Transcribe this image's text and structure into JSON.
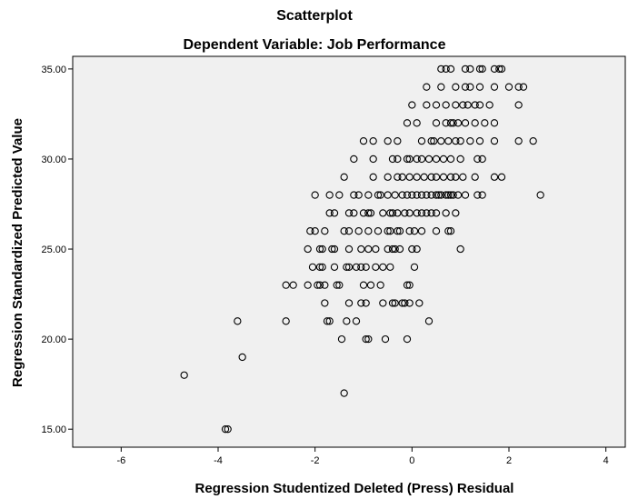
{
  "chart_data": {
    "type": "scatter",
    "title": "Scatterplot",
    "subtitle": "Dependent Variable: Job Performance",
    "xlabel": "Regression Studentized Deleted (Press) Residual",
    "ylabel": "Regression Standardized Predicted Value",
    "xlim": [
      -7,
      4.4
    ],
    "ylim": [
      14,
      35.7
    ],
    "xticks": [
      -6,
      -4,
      -2,
      0,
      2,
      4
    ],
    "xtick_labels": [
      "-6",
      "-4",
      "-2",
      "0",
      "2",
      "4"
    ],
    "yticks": [
      15,
      20,
      25,
      30,
      35
    ],
    "ytick_labels": [
      "15.00",
      "20.00",
      "25.00",
      "30.00",
      "35.00"
    ],
    "grid": false,
    "background": "#f0f0f0",
    "points": [
      {
        "x": 0.6,
        "y": 35
      },
      {
        "x": 0.7,
        "y": 35
      },
      {
        "x": 0.8,
        "y": 35
      },
      {
        "x": 1.1,
        "y": 35
      },
      {
        "x": 1.2,
        "y": 35
      },
      {
        "x": 1.4,
        "y": 35
      },
      {
        "x": 1.45,
        "y": 35
      },
      {
        "x": 1.7,
        "y": 35
      },
      {
        "x": 1.8,
        "y": 35
      },
      {
        "x": 1.85,
        "y": 35
      },
      {
        "x": 0.3,
        "y": 34
      },
      {
        "x": 0.6,
        "y": 34
      },
      {
        "x": 0.9,
        "y": 34
      },
      {
        "x": 1.1,
        "y": 34
      },
      {
        "x": 1.2,
        "y": 34
      },
      {
        "x": 1.4,
        "y": 34
      },
      {
        "x": 1.7,
        "y": 34
      },
      {
        "x": 2.0,
        "y": 34
      },
      {
        "x": 2.2,
        "y": 34
      },
      {
        "x": 2.3,
        "y": 34
      },
      {
        "x": 0.0,
        "y": 33
      },
      {
        "x": 0.3,
        "y": 33
      },
      {
        "x": 0.5,
        "y": 33
      },
      {
        "x": 0.7,
        "y": 33
      },
      {
        "x": 0.9,
        "y": 33
      },
      {
        "x": 1.05,
        "y": 33
      },
      {
        "x": 1.15,
        "y": 33
      },
      {
        "x": 1.3,
        "y": 33
      },
      {
        "x": 1.4,
        "y": 33
      },
      {
        "x": 1.6,
        "y": 33
      },
      {
        "x": 2.2,
        "y": 33
      },
      {
        "x": -0.1,
        "y": 32
      },
      {
        "x": 0.1,
        "y": 32
      },
      {
        "x": 0.5,
        "y": 32
      },
      {
        "x": 0.7,
        "y": 32
      },
      {
        "x": 0.8,
        "y": 32
      },
      {
        "x": 0.85,
        "y": 32
      },
      {
        "x": 0.95,
        "y": 32
      },
      {
        "x": 1.1,
        "y": 32
      },
      {
        "x": 1.3,
        "y": 32
      },
      {
        "x": 1.5,
        "y": 32
      },
      {
        "x": 1.7,
        "y": 32
      },
      {
        "x": -1.0,
        "y": 31
      },
      {
        "x": -0.8,
        "y": 31
      },
      {
        "x": -0.5,
        "y": 31
      },
      {
        "x": -0.3,
        "y": 31
      },
      {
        "x": 0.2,
        "y": 31
      },
      {
        "x": 0.4,
        "y": 31
      },
      {
        "x": 0.45,
        "y": 31
      },
      {
        "x": 0.6,
        "y": 31
      },
      {
        "x": 0.75,
        "y": 31
      },
      {
        "x": 0.9,
        "y": 31
      },
      {
        "x": 1.0,
        "y": 31
      },
      {
        "x": 1.2,
        "y": 31
      },
      {
        "x": 1.4,
        "y": 31
      },
      {
        "x": 1.7,
        "y": 31
      },
      {
        "x": 2.2,
        "y": 31
      },
      {
        "x": 2.5,
        "y": 31
      },
      {
        "x": -1.2,
        "y": 30
      },
      {
        "x": -0.8,
        "y": 30
      },
      {
        "x": -0.4,
        "y": 30
      },
      {
        "x": -0.3,
        "y": 30
      },
      {
        "x": -0.1,
        "y": 30
      },
      {
        "x": -0.05,
        "y": 30
      },
      {
        "x": 0.1,
        "y": 30
      },
      {
        "x": 0.2,
        "y": 30
      },
      {
        "x": 0.35,
        "y": 30
      },
      {
        "x": 0.5,
        "y": 30
      },
      {
        "x": 0.65,
        "y": 30
      },
      {
        "x": 0.8,
        "y": 30
      },
      {
        "x": 1.0,
        "y": 30
      },
      {
        "x": 1.35,
        "y": 30
      },
      {
        "x": 1.45,
        "y": 30
      },
      {
        "x": -1.4,
        "y": 29
      },
      {
        "x": -0.8,
        "y": 29
      },
      {
        "x": -0.5,
        "y": 29
      },
      {
        "x": -0.3,
        "y": 29
      },
      {
        "x": -0.2,
        "y": 29
      },
      {
        "x": -0.05,
        "y": 29
      },
      {
        "x": 0.1,
        "y": 29
      },
      {
        "x": 0.25,
        "y": 29
      },
      {
        "x": 0.4,
        "y": 29
      },
      {
        "x": 0.5,
        "y": 29
      },
      {
        "x": 0.65,
        "y": 29
      },
      {
        "x": 0.8,
        "y": 29
      },
      {
        "x": 0.9,
        "y": 29
      },
      {
        "x": 1.05,
        "y": 29
      },
      {
        "x": 1.3,
        "y": 29
      },
      {
        "x": 1.7,
        "y": 29
      },
      {
        "x": 1.85,
        "y": 29
      },
      {
        "x": -2.0,
        "y": 28
      },
      {
        "x": -1.7,
        "y": 28
      },
      {
        "x": -1.5,
        "y": 28
      },
      {
        "x": -1.2,
        "y": 28
      },
      {
        "x": -1.1,
        "y": 28
      },
      {
        "x": -0.9,
        "y": 28
      },
      {
        "x": -0.7,
        "y": 28
      },
      {
        "x": -0.65,
        "y": 28
      },
      {
        "x": -0.5,
        "y": 28
      },
      {
        "x": -0.35,
        "y": 28
      },
      {
        "x": -0.2,
        "y": 28
      },
      {
        "x": -0.1,
        "y": 28
      },
      {
        "x": 0.0,
        "y": 28
      },
      {
        "x": 0.1,
        "y": 28
      },
      {
        "x": 0.2,
        "y": 28
      },
      {
        "x": 0.3,
        "y": 28
      },
      {
        "x": 0.4,
        "y": 28
      },
      {
        "x": 0.5,
        "y": 28
      },
      {
        "x": 0.55,
        "y": 28
      },
      {
        "x": 0.6,
        "y": 28
      },
      {
        "x": 0.7,
        "y": 28
      },
      {
        "x": 0.75,
        "y": 28
      },
      {
        "x": 0.8,
        "y": 28
      },
      {
        "x": 0.85,
        "y": 28
      },
      {
        "x": 0.95,
        "y": 28
      },
      {
        "x": 1.1,
        "y": 28
      },
      {
        "x": 1.35,
        "y": 28
      },
      {
        "x": 1.45,
        "y": 28
      },
      {
        "x": 2.65,
        "y": 28
      },
      {
        "x": -1.7,
        "y": 27
      },
      {
        "x": -1.6,
        "y": 27
      },
      {
        "x": -1.3,
        "y": 27
      },
      {
        "x": -1.2,
        "y": 27
      },
      {
        "x": -1.0,
        "y": 27
      },
      {
        "x": -0.9,
        "y": 27
      },
      {
        "x": -0.85,
        "y": 27
      },
      {
        "x": -0.6,
        "y": 27
      },
      {
        "x": -0.45,
        "y": 27
      },
      {
        "x": -0.4,
        "y": 27
      },
      {
        "x": -0.3,
        "y": 27
      },
      {
        "x": -0.15,
        "y": 27
      },
      {
        "x": -0.05,
        "y": 27
      },
      {
        "x": 0.1,
        "y": 27
      },
      {
        "x": 0.2,
        "y": 27
      },
      {
        "x": 0.3,
        "y": 27
      },
      {
        "x": 0.4,
        "y": 27
      },
      {
        "x": 0.5,
        "y": 27
      },
      {
        "x": 0.7,
        "y": 27
      },
      {
        "x": 0.9,
        "y": 27
      },
      {
        "x": -2.1,
        "y": 26
      },
      {
        "x": -2.0,
        "y": 26
      },
      {
        "x": -1.8,
        "y": 26
      },
      {
        "x": -1.4,
        "y": 26
      },
      {
        "x": -1.3,
        "y": 26
      },
      {
        "x": -1.1,
        "y": 26
      },
      {
        "x": -0.9,
        "y": 26
      },
      {
        "x": -0.7,
        "y": 26
      },
      {
        "x": -0.5,
        "y": 26
      },
      {
        "x": -0.45,
        "y": 26
      },
      {
        "x": -0.3,
        "y": 26
      },
      {
        "x": -0.25,
        "y": 26
      },
      {
        "x": -0.05,
        "y": 26
      },
      {
        "x": 0.05,
        "y": 26
      },
      {
        "x": 0.2,
        "y": 26
      },
      {
        "x": 0.5,
        "y": 26
      },
      {
        "x": 0.75,
        "y": 26
      },
      {
        "x": 0.8,
        "y": 26
      },
      {
        "x": -2.15,
        "y": 25
      },
      {
        "x": -1.9,
        "y": 25
      },
      {
        "x": -1.85,
        "y": 25
      },
      {
        "x": -1.65,
        "y": 25
      },
      {
        "x": -1.6,
        "y": 25
      },
      {
        "x": -1.3,
        "y": 25
      },
      {
        "x": -1.05,
        "y": 25
      },
      {
        "x": -0.9,
        "y": 25
      },
      {
        "x": -0.75,
        "y": 25
      },
      {
        "x": -0.5,
        "y": 25
      },
      {
        "x": -0.4,
        "y": 25
      },
      {
        "x": -0.35,
        "y": 25
      },
      {
        "x": -0.25,
        "y": 25
      },
      {
        "x": 0.0,
        "y": 25
      },
      {
        "x": 0.1,
        "y": 25
      },
      {
        "x": 1.0,
        "y": 25
      },
      {
        "x": -2.05,
        "y": 24
      },
      {
        "x": -1.9,
        "y": 24
      },
      {
        "x": -1.85,
        "y": 24
      },
      {
        "x": -1.6,
        "y": 24
      },
      {
        "x": -1.35,
        "y": 24
      },
      {
        "x": -1.3,
        "y": 24
      },
      {
        "x": -1.15,
        "y": 24
      },
      {
        "x": -1.05,
        "y": 24
      },
      {
        "x": -0.95,
        "y": 24
      },
      {
        "x": -0.75,
        "y": 24
      },
      {
        "x": -0.6,
        "y": 24
      },
      {
        "x": -0.45,
        "y": 24
      },
      {
        "x": 0.05,
        "y": 24
      },
      {
        "x": -2.6,
        "y": 23
      },
      {
        "x": -2.45,
        "y": 23
      },
      {
        "x": -2.15,
        "y": 23
      },
      {
        "x": -1.95,
        "y": 23
      },
      {
        "x": -1.9,
        "y": 23
      },
      {
        "x": -1.8,
        "y": 23
      },
      {
        "x": -1.55,
        "y": 23
      },
      {
        "x": -1.5,
        "y": 23
      },
      {
        "x": -1.0,
        "y": 23
      },
      {
        "x": -0.85,
        "y": 23
      },
      {
        "x": -0.65,
        "y": 23
      },
      {
        "x": -0.1,
        "y": 23
      },
      {
        "x": -0.05,
        "y": 23
      },
      {
        "x": -1.8,
        "y": 22
      },
      {
        "x": -1.3,
        "y": 22
      },
      {
        "x": -1.05,
        "y": 22
      },
      {
        "x": -0.95,
        "y": 22
      },
      {
        "x": -0.6,
        "y": 22
      },
      {
        "x": -0.4,
        "y": 22
      },
      {
        "x": -0.35,
        "y": 22
      },
      {
        "x": -0.2,
        "y": 22
      },
      {
        "x": -0.15,
        "y": 22
      },
      {
        "x": -0.05,
        "y": 22
      },
      {
        "x": 0.15,
        "y": 22
      },
      {
        "x": -3.6,
        "y": 21
      },
      {
        "x": -2.6,
        "y": 21
      },
      {
        "x": -1.75,
        "y": 21
      },
      {
        "x": -1.7,
        "y": 21
      },
      {
        "x": -1.35,
        "y": 21
      },
      {
        "x": -1.15,
        "y": 21
      },
      {
        "x": 0.35,
        "y": 21
      },
      {
        "x": -1.45,
        "y": 20
      },
      {
        "x": -0.95,
        "y": 20
      },
      {
        "x": -0.9,
        "y": 20
      },
      {
        "x": -0.55,
        "y": 20
      },
      {
        "x": -0.1,
        "y": 20
      },
      {
        "x": -3.5,
        "y": 19
      },
      {
        "x": -4.7,
        "y": 18
      },
      {
        "x": -1.4,
        "y": 17
      },
      {
        "x": -3.85,
        "y": 15
      },
      {
        "x": -3.8,
        "y": 15
      }
    ]
  }
}
